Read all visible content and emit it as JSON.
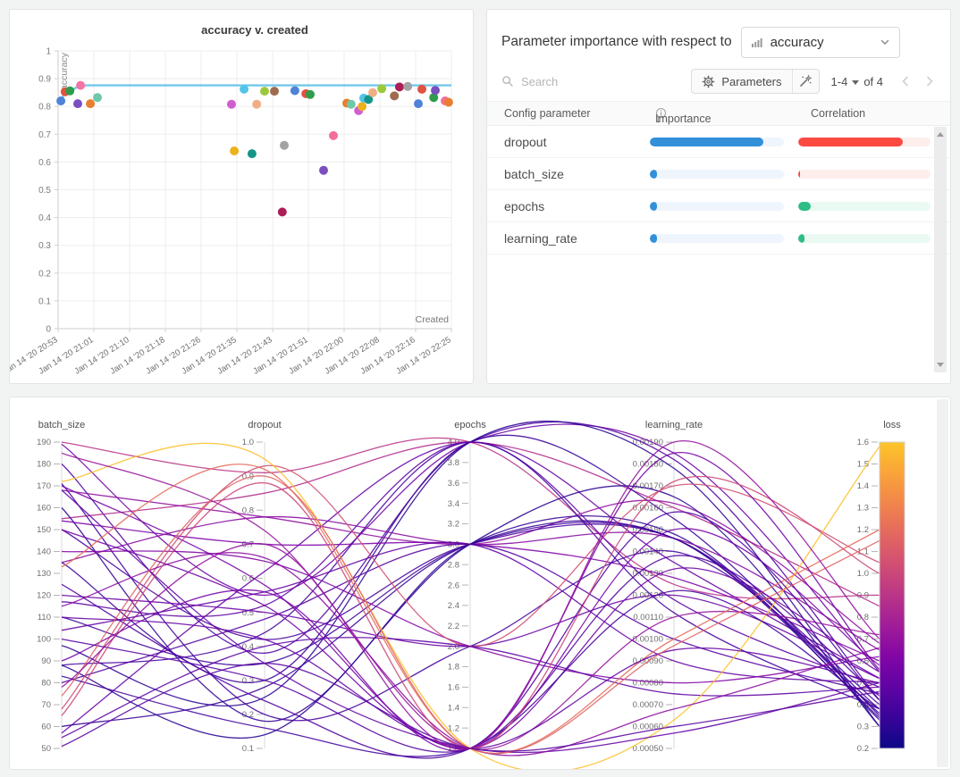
{
  "importance": {
    "title": "Parameter importance with respect to",
    "metric": "accuracy",
    "search_placeholder": "Search",
    "parameters_label": "Parameters",
    "pagination": {
      "range": "1-4",
      "of": "of 4"
    },
    "table": {
      "headers": [
        "Config parameter",
        "Importance",
        "Correlation"
      ],
      "colors": {
        "importance_fill": "#3290d9",
        "importance_track": "#eff5fc",
        "negative_fill": "#fb4a42",
        "negative_track": "#fdeeec",
        "positive_fill": "#2ebd85",
        "positive_track": "#eafaf2"
      },
      "rows": [
        {
          "name": "dropout",
          "importance": 0.845,
          "correlation": 0.79,
          "correlation_sign": "negative"
        },
        {
          "name": "batch_size",
          "importance": 0.055,
          "correlation": 0.013,
          "correlation_sign": "negative"
        },
        {
          "name": "epochs",
          "importance": 0.05,
          "correlation": 0.095,
          "correlation_sign": "positive"
        },
        {
          "name": "learning_rate",
          "importance": 0.05,
          "correlation": 0.045,
          "correlation_sign": "positive"
        }
      ]
    }
  },
  "chart_data": [
    {
      "type": "scatter",
      "title": "accuracy v. created",
      "xlabel": "Created",
      "ylabel": "accuracy",
      "ylim": [
        0,
        1
      ],
      "y_ticks": [
        "1",
        "0.9",
        "0.8",
        "0.7",
        "0.6",
        "0.5",
        "0.4",
        "0.3",
        "0.2",
        "0.1",
        "0"
      ],
      "x_ticks": [
        "Jan 14 '20 20:53",
        "Jan 14 '20 21:01",
        "Jan 14 '20 21:10",
        "Jan 14 '20 21:18",
        "Jan 14 '20 21:26",
        "Jan 14 '20 21:35",
        "Jan 14 '20 21:43",
        "Jan 14 '20 21:51",
        "Jan 14 '20 22:00",
        "Jan 14 '20 22:08",
        "Jan 14 '20 22:16",
        "Jan 14 '20 22:25"
      ],
      "best_line": {
        "color": "#6cc5ea",
        "points": [
          [
            0.007,
            0.82
          ],
          [
            0.018,
            0.853
          ],
          [
            0.03,
            0.856
          ],
          [
            0.057,
            0.876
          ],
          [
            1.0,
            0.876
          ]
        ]
      },
      "points": [
        {
          "x": 0.007,
          "y": 0.82,
          "color": "#4e83d8"
        },
        {
          "x": 0.018,
          "y": 0.853,
          "color": "#e25241"
        },
        {
          "x": 0.03,
          "y": 0.856,
          "color": "#2e9d4b"
        },
        {
          "x": 0.057,
          "y": 0.876,
          "color": "#f275a5"
        },
        {
          "x": 0.05,
          "y": 0.81,
          "color": "#7a4fc0"
        },
        {
          "x": 0.082,
          "y": 0.81,
          "color": "#e97f2e"
        },
        {
          "x": 0.1,
          "y": 0.832,
          "color": "#6fc8a8"
        },
        {
          "x": 0.441,
          "y": 0.808,
          "color": "#d05ed0"
        },
        {
          "x": 0.473,
          "y": 0.862,
          "color": "#54c4e8"
        },
        {
          "x": 0.505,
          "y": 0.808,
          "color": "#f0ae85"
        },
        {
          "x": 0.525,
          "y": 0.855,
          "color": "#9cc93c"
        },
        {
          "x": 0.55,
          "y": 0.855,
          "color": "#9e6b4f"
        },
        {
          "x": 0.602,
          "y": 0.857,
          "color": "#4e83d8"
        },
        {
          "x": 0.63,
          "y": 0.846,
          "color": "#e25241"
        },
        {
          "x": 0.641,
          "y": 0.843,
          "color": "#2e9d4b"
        },
        {
          "x": 0.448,
          "y": 0.64,
          "color": "#ecb21e"
        },
        {
          "x": 0.493,
          "y": 0.63,
          "color": "#159588"
        },
        {
          "x": 0.575,
          "y": 0.66,
          "color": "#a3a3a3"
        },
        {
          "x": 0.7,
          "y": 0.695,
          "color": "#f26d9a"
        },
        {
          "x": 0.675,
          "y": 0.57,
          "color": "#7a4fc0"
        },
        {
          "x": 0.57,
          "y": 0.42,
          "color": "#ab1f56"
        },
        {
          "x": 0.734,
          "y": 0.812,
          "color": "#e97f2e"
        },
        {
          "x": 0.745,
          "y": 0.808,
          "color": "#6fc8a8"
        },
        {
          "x": 0.764,
          "y": 0.785,
          "color": "#d05ed0"
        },
        {
          "x": 0.773,
          "y": 0.8,
          "color": "#ecb21e"
        },
        {
          "x": 0.777,
          "y": 0.83,
          "color": "#54c4e8"
        },
        {
          "x": 0.789,
          "y": 0.825,
          "color": "#159588"
        },
        {
          "x": 0.8,
          "y": 0.85,
          "color": "#f0ae85"
        },
        {
          "x": 0.823,
          "y": 0.864,
          "color": "#9cc93c"
        },
        {
          "x": 0.855,
          "y": 0.838,
          "color": "#9e6b4f"
        },
        {
          "x": 0.868,
          "y": 0.87,
          "color": "#ab1f56"
        },
        {
          "x": 0.889,
          "y": 0.872,
          "color": "#a3a3a3"
        },
        {
          "x": 0.916,
          "y": 0.81,
          "color": "#4e83d8"
        },
        {
          "x": 0.925,
          "y": 0.862,
          "color": "#e25241"
        },
        {
          "x": 0.955,
          "y": 0.832,
          "color": "#2e9d4b"
        },
        {
          "x": 0.959,
          "y": 0.858,
          "color": "#7a4fc0"
        },
        {
          "x": 0.984,
          "y": 0.82,
          "color": "#f26d9a"
        },
        {
          "x": 0.993,
          "y": 0.815,
          "color": "#e97f2e"
        }
      ]
    },
    {
      "type": "parallel_coordinates",
      "color_axis": "loss",
      "colormap": "plasma",
      "color_range": [
        0.2,
        1.6
      ],
      "axes": [
        {
          "name": "batch_size",
          "min": 50,
          "max": 190,
          "ticks": [
            "190",
            "180",
            "170",
            "160",
            "150",
            "140",
            "130",
            "120",
            "110",
            "100",
            "90",
            "80",
            "70",
            "60",
            "50"
          ]
        },
        {
          "name": "dropout",
          "min": 0.1,
          "max": 1.0,
          "ticks": [
            "1.0",
            "0.9",
            "0.8",
            "0.7",
            "0.6",
            "0.5",
            "0.4",
            "0.3",
            "0.2",
            "0.1"
          ]
        },
        {
          "name": "epochs",
          "min": 1.0,
          "max": 4.0,
          "ticks": [
            "4.0",
            "3.8",
            "3.6",
            "3.4",
            "3.2",
            "3.0",
            "2.8",
            "2.6",
            "2.4",
            "2.2",
            "2.0",
            "1.8",
            "1.6",
            "1.4",
            "1.2",
            "1.0"
          ]
        },
        {
          "name": "learning_rate",
          "min": 0.0005,
          "max": 0.0019,
          "ticks": [
            "0.00190",
            "0.00180",
            "0.00170",
            "0.00160",
            "0.00150",
            "0.00140",
            "0.00130",
            "0.00120",
            "0.00110",
            "0.00100",
            "0.00090",
            "0.00080",
            "0.00070",
            "0.00060",
            "0.00050"
          ]
        },
        {
          "name": "loss",
          "min": 0.2,
          "max": 1.6,
          "colorbar": true,
          "ticks": [
            "1.6",
            "1.5",
            "1.4",
            "1.3",
            "1.2",
            "1.1",
            "1.0",
            "0.9",
            "0.8",
            "0.7",
            "0.6",
            "0.5",
            "0.4",
            "0.3",
            "0.2"
          ]
        }
      ],
      "columns": [
        "batch_size",
        "dropout",
        "epochs",
        "learning_rate",
        "loss"
      ],
      "runs": [
        [
          190,
          0.91,
          4,
          0.00125,
          0.9
        ],
        [
          189,
          0.55,
          4,
          0.00185,
          0.55
        ],
        [
          180,
          0.38,
          4,
          0.00182,
          0.42
        ],
        [
          155,
          0.85,
          4,
          0.0016,
          0.85
        ],
        [
          135,
          0.3,
          4,
          0.00155,
          0.35
        ],
        [
          117,
          0.52,
          4,
          0.00118,
          0.48
        ],
        [
          97,
          0.25,
          4,
          0.00178,
          0.3
        ],
        [
          88,
          0.44,
          4,
          0.00112,
          0.38
        ],
        [
          57,
          0.62,
          4,
          0.00135,
          0.52
        ],
        [
          168,
          0.78,
          3,
          0.00162,
          0.68
        ],
        [
          160,
          0.18,
          3,
          0.00148,
          0.33
        ],
        [
          154,
          0.7,
          3,
          0.00128,
          0.6
        ],
        [
          150,
          0.42,
          3,
          0.00146,
          0.4
        ],
        [
          135,
          0.78,
          3,
          0.00146,
          0.65
        ],
        [
          110,
          0.35,
          3,
          0.00146,
          0.36
        ],
        [
          104,
          0.56,
          3,
          0.0009,
          0.5
        ],
        [
          88,
          0.14,
          3,
          0.00165,
          0.3
        ],
        [
          80,
          0.48,
          3,
          0.001,
          0.45
        ],
        [
          60,
          0.28,
          3,
          0.00146,
          0.34
        ],
        [
          171,
          0.2,
          2,
          0.0014,
          0.38
        ],
        [
          140,
          0.65,
          2,
          0.0008,
          0.62
        ],
        [
          120,
          0.5,
          2,
          0.0012,
          0.52
        ],
        [
          68,
          0.93,
          2,
          0.0017,
          1.05
        ],
        [
          55,
          0.4,
          2,
          0.00075,
          0.48
        ],
        [
          172,
          0.95,
          1,
          0.00063,
          1.58
        ],
        [
          185,
          0.74,
          1,
          0.0011,
          0.72
        ],
        [
          170,
          0.58,
          1,
          0.0015,
          0.58
        ],
        [
          168,
          0.35,
          1,
          0.00057,
          0.5
        ],
        [
          150,
          0.52,
          1,
          0.00132,
          0.55
        ],
        [
          133,
          0.92,
          1,
          0.001,
          1.2
        ],
        [
          125,
          0.24,
          1,
          0.00158,
          0.42
        ],
        [
          115,
          0.66,
          1,
          0.00068,
          0.66
        ],
        [
          110,
          0.42,
          1,
          0.00095,
          0.5
        ],
        [
          100,
          0.3,
          1,
          0.00138,
          0.44
        ],
        [
          90,
          0.56,
          1,
          0.00185,
          0.56
        ],
        [
          83,
          0.16,
          1,
          0.00122,
          0.38
        ],
        [
          74,
          0.9,
          1,
          0.00097,
          1.15
        ],
        [
          65,
          0.88,
          1,
          0.00172,
          1.0
        ],
        [
          51,
          0.35,
          1,
          0.0006,
          0.46
        ],
        [
          78,
          0.7,
          1,
          0.0019,
          0.7
        ]
      ]
    }
  ]
}
